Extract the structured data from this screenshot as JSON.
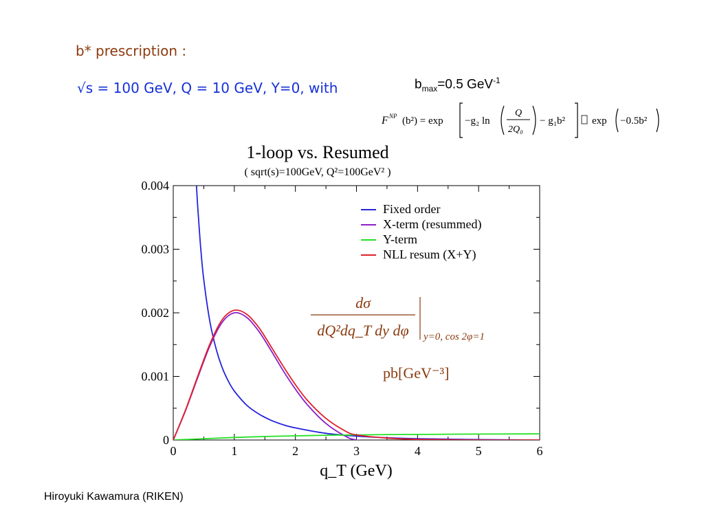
{
  "slide": {
    "heading": "b* prescription :",
    "params": "√s = 100 GeV,  Q = 10 GeV, Y=0, with",
    "bmax": {
      "base": "b",
      "sub": "max",
      "main": "=0.5 GeV",
      "sup": "-1"
    },
    "formula": {
      "lhs": "F",
      "lhs_sup": "NP",
      "arg": "(b²) = exp",
      "term1": "−g₂ ln",
      "frac_num": "Q",
      "frac_den": "2Q₀",
      "term2": "− g₁b²",
      "mid_glyph": "",
      "rhs": "exp",
      "rhs_arg": "−0.5b²"
    },
    "footer": "Hiroyuki Kawamura (RIKEN)"
  },
  "colors": {
    "heading": "#8b3a0e",
    "params": "#1530d8",
    "annotation": "#8b3a0e"
  },
  "chart_data": {
    "type": "line",
    "title": "1-loop vs. Resumed",
    "subtitle": "( sqrt(s)=100GeV, Q²=100GeV² )",
    "xlabel": "q_T (GeV)",
    "ylabel": "",
    "xlim": [
      0,
      6
    ],
    "ylim": [
      0,
      0.004
    ],
    "xticks": [
      "0",
      "1",
      "2",
      "3",
      "4",
      "5",
      "6"
    ],
    "yticks": [
      "0",
      "0.001",
      "0.002",
      "0.003",
      "0.004"
    ],
    "grid": false,
    "legend_position": "top-right",
    "annotations": {
      "formula_num": "dσ",
      "formula_den": "dQ²dq_T dy dφ",
      "formula_cond": "y=0, cos 2φ=1",
      "units": "pb[GeV⁻³]"
    },
    "series": [
      {
        "name": "Fixed order",
        "color": "#2323dc",
        "x": [
          0.38,
          0.4,
          0.45,
          0.5,
          0.6,
          0.7,
          0.8,
          0.9,
          1.0,
          1.2,
          1.4,
          1.6,
          1.8,
          2.0,
          2.5,
          3.0,
          3.5,
          4.0,
          5.0,
          6.0
        ],
        "y": [
          0.004,
          0.00368,
          0.00301,
          0.00252,
          0.00186,
          0.00144,
          0.00114,
          0.00093,
          0.00077,
          0.00055,
          0.00041,
          0.00031,
          0.00024,
          0.00019,
          0.000105,
          6e-05,
          3.5e-05,
          2e-05,
          6e-06,
          0.0
        ]
      },
      {
        "name": "X-term (resummed)",
        "color": "#8a1ec8",
        "x": [
          0,
          0.2,
          0.4,
          0.6,
          0.8,
          1.0,
          1.2,
          1.4,
          1.6,
          1.8,
          2.0,
          2.2,
          2.5,
          2.8,
          3.0,
          3.5,
          4.0,
          5.0,
          6.0
        ],
        "y": [
          0.0,
          0.00046,
          0.00098,
          0.00148,
          0.00185,
          0.002,
          0.00193,
          0.00171,
          0.00141,
          0.00109,
          0.0008,
          0.00055,
          0.00026,
          7e-05,
          0.0,
          -5e-05,
          -7e-05,
          -8e-05,
          -9e-05
        ]
      },
      {
        "name": "Y-term",
        "color": "#22e022",
        "x": [
          0,
          0.5,
          1.0,
          1.5,
          2.0,
          2.5,
          3.0,
          3.5,
          4.0,
          5.0,
          6.0
        ],
        "y": [
          0.0,
          2e-05,
          4e-05,
          5.5e-05,
          6.5e-05,
          7.5e-05,
          8e-05,
          8.5e-05,
          8.8e-05,
          9.3e-05,
          9.7e-05
        ]
      },
      {
        "name": "NLL resum (X+Y)",
        "color": "#e0202a",
        "x": [
          0,
          0.2,
          0.4,
          0.6,
          0.8,
          1.0,
          1.2,
          1.4,
          1.6,
          1.8,
          2.0,
          2.2,
          2.5,
          2.8,
          3.0,
          3.5,
          4.0,
          5.0,
          6.0
        ],
        "y": [
          0.0,
          0.00047,
          0.001,
          0.00151,
          0.00189,
          0.00204,
          0.00198,
          0.00177,
          0.00147,
          0.00116,
          0.00087,
          0.00062,
          0.00034,
          0.00015,
          8e-05,
          3e-05,
          1e-05,
          0.0,
          0.0
        ]
      }
    ]
  }
}
